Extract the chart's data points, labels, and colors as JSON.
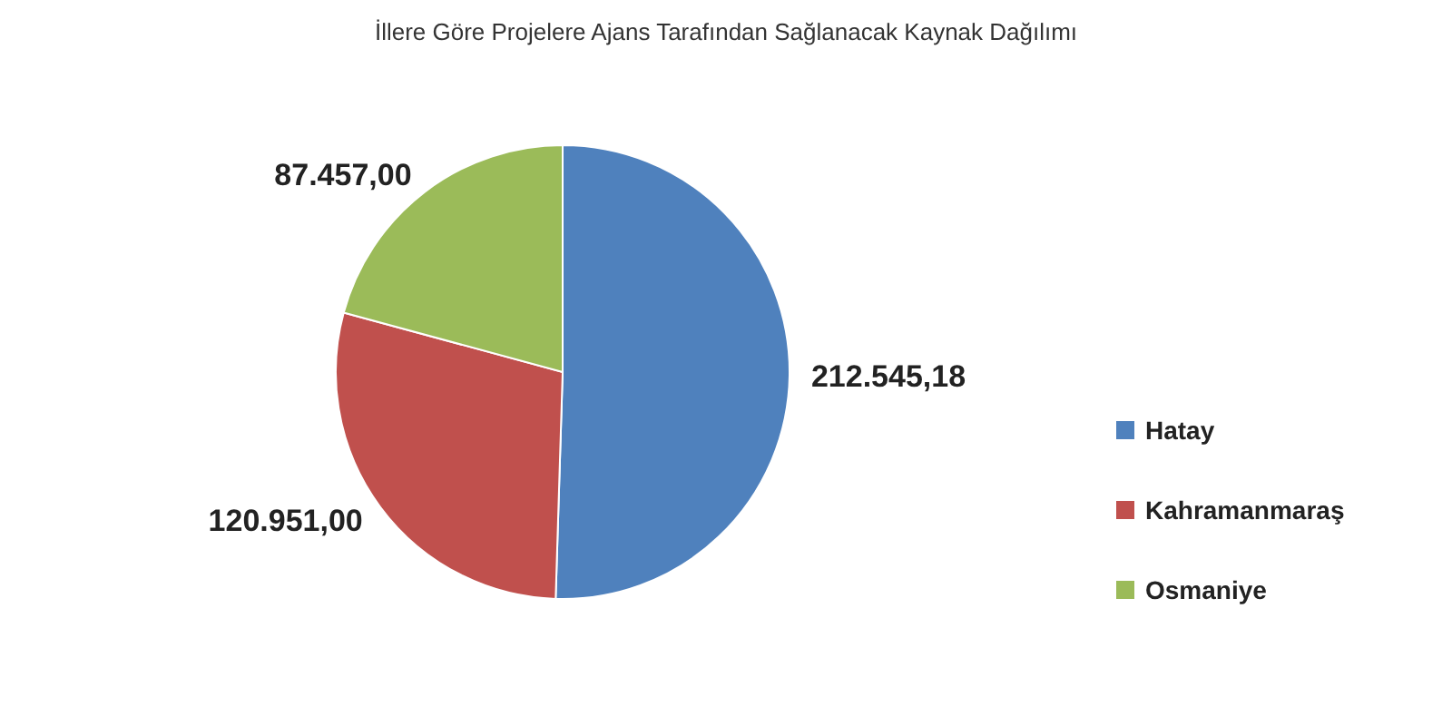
{
  "chart_data": {
    "type": "pie",
    "title": "İllere Göre Projelere Ajans Tarafından Sağlanacak Kaynak Dağılımı",
    "categories": [
      "Hatay",
      "Kahramanmaraş",
      "Osmaniye"
    ],
    "values": [
      212545.18,
      120951.0,
      87457.0
    ],
    "colors": [
      "#4f81bd",
      "#c0504d",
      "#9bbb59"
    ],
    "value_labels": [
      "212.545,18",
      "120.951,00",
      "87.457,00"
    ],
    "legend": "right"
  }
}
